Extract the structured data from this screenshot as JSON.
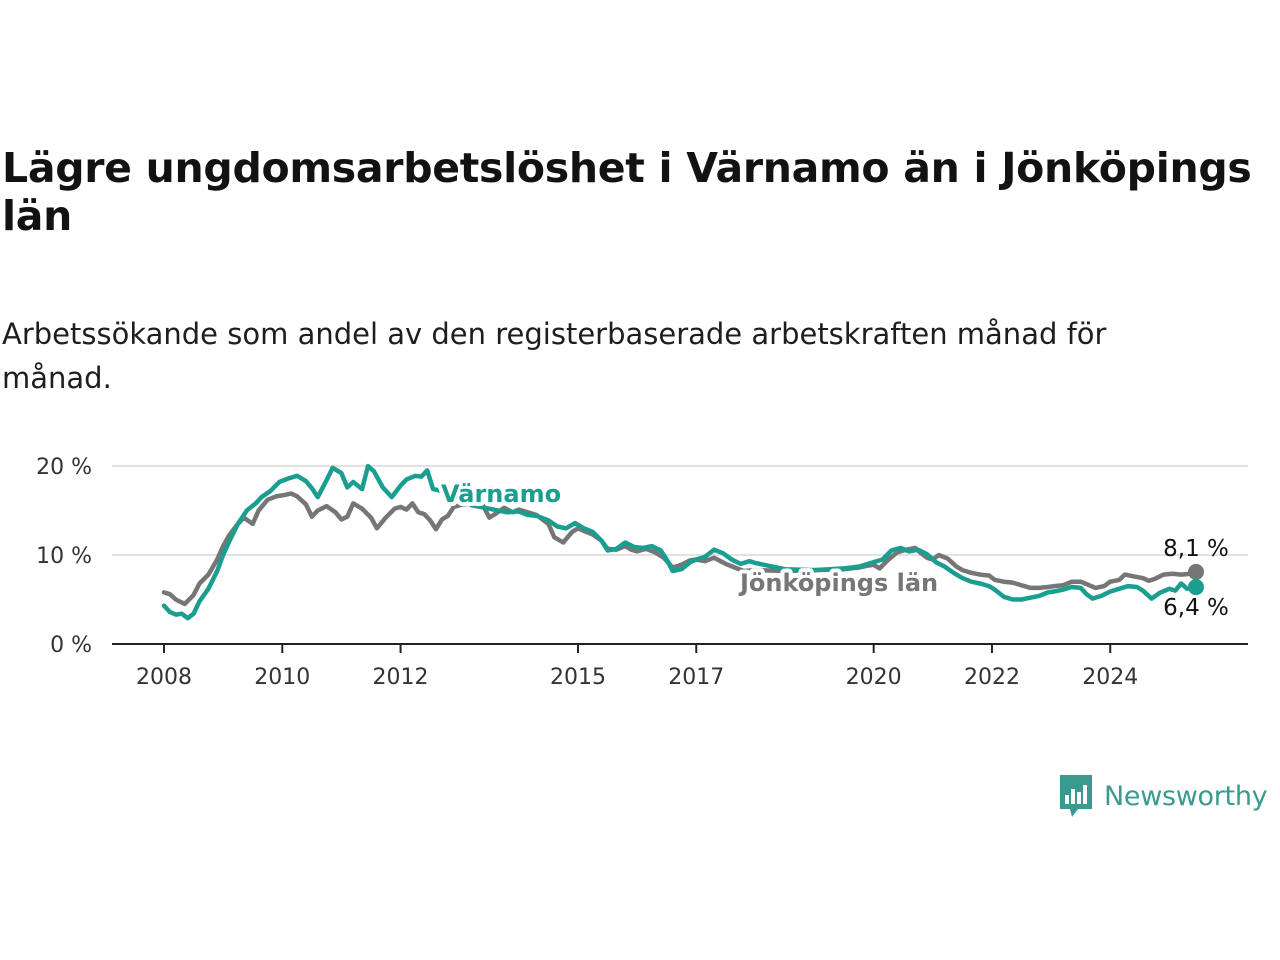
{
  "title": "Lägre ungdomsarbetslöshet i Värnamo än i Jönköpings län",
  "subtitle": "Arbetssökande som andel av den registerbaserade arbetskraften månad för månad.",
  "brand": {
    "name": "Newsworthy",
    "icon": "newsworthy-bar-chart-icon",
    "color": "#3a9a8e"
  },
  "chart_data": {
    "type": "line",
    "x_unit": "year",
    "xlim": [
      2008,
      2025.75
    ],
    "ylim": [
      0,
      20
    ],
    "y_ticks": [
      {
        "value": 0,
        "label": "0 %"
      },
      {
        "value": 10,
        "label": "10 %"
      },
      {
        "value": 20,
        "label": "20 %"
      }
    ],
    "x_ticks": [
      {
        "value": 2008,
        "label": "2008"
      },
      {
        "value": 2010,
        "label": "2010"
      },
      {
        "value": 2012,
        "label": "2012"
      },
      {
        "value": 2015,
        "label": "2015"
      },
      {
        "value": 2017,
        "label": "2017"
      },
      {
        "value": 2020,
        "label": "2020"
      },
      {
        "value": 2022,
        "label": "2022"
      },
      {
        "value": 2024,
        "label": "2024"
      }
    ],
    "grid": true,
    "series": [
      {
        "name": "Jönköpings län",
        "color": "#767676",
        "end_label": "8,1 %",
        "points": [
          [
            2008.0,
            5.8
          ],
          [
            2008.1,
            5.6
          ],
          [
            2008.2,
            5.0
          ],
          [
            2008.35,
            4.5
          ],
          [
            2008.5,
            5.5
          ],
          [
            2008.6,
            6.8
          ],
          [
            2008.75,
            7.8
          ],
          [
            2008.9,
            9.5
          ],
          [
            2009.0,
            11.0
          ],
          [
            2009.1,
            12.2
          ],
          [
            2009.25,
            13.5
          ],
          [
            2009.35,
            14.2
          ],
          [
            2009.5,
            13.5
          ],
          [
            2009.6,
            15.0
          ],
          [
            2009.75,
            16.2
          ],
          [
            2009.9,
            16.6
          ],
          [
            2010.0,
            16.7
          ],
          [
            2010.15,
            16.9
          ],
          [
            2010.25,
            16.6
          ],
          [
            2010.4,
            15.7
          ],
          [
            2010.5,
            14.3
          ],
          [
            2010.6,
            15.0
          ],
          [
            2010.75,
            15.5
          ],
          [
            2010.9,
            14.8
          ],
          [
            2011.0,
            14.0
          ],
          [
            2011.1,
            14.3
          ],
          [
            2011.2,
            15.8
          ],
          [
            2011.35,
            15.2
          ],
          [
            2011.5,
            14.2
          ],
          [
            2011.6,
            13.0
          ],
          [
            2011.75,
            14.2
          ],
          [
            2011.9,
            15.2
          ],
          [
            2012.0,
            15.4
          ],
          [
            2012.1,
            15.1
          ],
          [
            2012.2,
            15.8
          ],
          [
            2012.3,
            14.8
          ],
          [
            2012.4,
            14.6
          ],
          [
            2012.5,
            13.9
          ],
          [
            2012.6,
            12.9
          ],
          [
            2012.7,
            14.0
          ],
          [
            2012.8,
            14.4
          ],
          [
            2012.9,
            15.4
          ],
          [
            2013.0,
            15.6
          ],
          [
            2013.2,
            15.8
          ],
          [
            2013.4,
            15.5
          ],
          [
            2013.5,
            14.2
          ],
          [
            2013.6,
            14.6
          ],
          [
            2013.75,
            15.3
          ],
          [
            2013.9,
            14.8
          ],
          [
            2014.0,
            15.1
          ],
          [
            2014.15,
            14.8
          ],
          [
            2014.3,
            14.5
          ],
          [
            2014.5,
            13.5
          ],
          [
            2014.6,
            12.0
          ],
          [
            2014.75,
            11.4
          ],
          [
            2014.9,
            12.6
          ],
          [
            2015.0,
            13.0
          ],
          [
            2015.1,
            12.7
          ],
          [
            2015.25,
            12.3
          ],
          [
            2015.4,
            11.6
          ],
          [
            2015.5,
            10.7
          ],
          [
            2015.65,
            10.6
          ],
          [
            2015.8,
            11.0
          ],
          [
            2015.9,
            10.6
          ],
          [
            2016.0,
            10.4
          ],
          [
            2016.15,
            10.7
          ],
          [
            2016.3,
            10.3
          ],
          [
            2016.45,
            9.7
          ],
          [
            2016.6,
            8.6
          ],
          [
            2016.75,
            8.9
          ],
          [
            2016.9,
            9.4
          ],
          [
            2017.0,
            9.5
          ],
          [
            2017.15,
            9.3
          ],
          [
            2017.3,
            9.7
          ],
          [
            2017.5,
            9.0
          ],
          [
            2017.65,
            8.6
          ],
          [
            2017.8,
            8.2
          ],
          [
            2018.0,
            8.3
          ],
          [
            2018.5,
            8.2
          ],
          [
            2019.0,
            8.3
          ],
          [
            2019.5,
            8.4
          ],
          [
            2019.75,
            8.6
          ],
          [
            2019.9,
            8.8
          ],
          [
            2020.0,
            8.9
          ],
          [
            2020.1,
            8.5
          ],
          [
            2020.25,
            9.5
          ],
          [
            2020.4,
            10.3
          ],
          [
            2020.55,
            10.6
          ],
          [
            2020.7,
            10.8
          ],
          [
            2020.8,
            10.2
          ],
          [
            2020.9,
            9.7
          ],
          [
            2021.0,
            9.5
          ],
          [
            2021.1,
            10.0
          ],
          [
            2021.25,
            9.6
          ],
          [
            2021.4,
            8.7
          ],
          [
            2021.5,
            8.3
          ],
          [
            2021.65,
            8.0
          ],
          [
            2021.8,
            7.8
          ],
          [
            2021.95,
            7.7
          ],
          [
            2022.05,
            7.2
          ],
          [
            2022.2,
            7.0
          ],
          [
            2022.35,
            6.9
          ],
          [
            2022.5,
            6.6
          ],
          [
            2022.65,
            6.3
          ],
          [
            2022.8,
            6.3
          ],
          [
            2022.95,
            6.4
          ],
          [
            2023.05,
            6.5
          ],
          [
            2023.2,
            6.6
          ],
          [
            2023.35,
            7.0
          ],
          [
            2023.5,
            7.0
          ],
          [
            2023.65,
            6.6
          ],
          [
            2023.75,
            6.3
          ],
          [
            2023.9,
            6.5
          ],
          [
            2024.0,
            7.0
          ],
          [
            2024.15,
            7.2
          ],
          [
            2024.25,
            7.8
          ],
          [
            2024.4,
            7.6
          ],
          [
            2024.55,
            7.4
          ],
          [
            2024.65,
            7.1
          ],
          [
            2024.75,
            7.3
          ],
          [
            2024.9,
            7.8
          ],
          [
            2025.05,
            7.9
          ],
          [
            2025.2,
            7.8
          ],
          [
            2025.35,
            7.9
          ],
          [
            2025.45,
            8.1
          ]
        ]
      },
      {
        "name": "Värnamo",
        "color": "#1a9e90",
        "end_label": "6,4 %",
        "points": [
          [
            2008.0,
            4.3
          ],
          [
            2008.1,
            3.6
          ],
          [
            2008.2,
            3.3
          ],
          [
            2008.3,
            3.4
          ],
          [
            2008.4,
            2.9
          ],
          [
            2008.5,
            3.4
          ],
          [
            2008.6,
            4.8
          ],
          [
            2008.75,
            6.2
          ],
          [
            2008.9,
            8.2
          ],
          [
            2009.0,
            10.0
          ],
          [
            2009.1,
            11.5
          ],
          [
            2009.25,
            13.5
          ],
          [
            2009.4,
            15.0
          ],
          [
            2009.55,
            15.8
          ],
          [
            2009.65,
            16.5
          ],
          [
            2009.8,
            17.2
          ],
          [
            2009.95,
            18.2
          ],
          [
            2010.1,
            18.6
          ],
          [
            2010.25,
            18.9
          ],
          [
            2010.4,
            18.3
          ],
          [
            2010.5,
            17.5
          ],
          [
            2010.6,
            16.5
          ],
          [
            2010.75,
            18.4
          ],
          [
            2010.85,
            19.8
          ],
          [
            2011.0,
            19.2
          ],
          [
            2011.1,
            17.6
          ],
          [
            2011.2,
            18.2
          ],
          [
            2011.35,
            17.4
          ],
          [
            2011.45,
            20.0
          ],
          [
            2011.55,
            19.4
          ],
          [
            2011.7,
            17.6
          ],
          [
            2011.85,
            16.5
          ],
          [
            2012.0,
            17.8
          ],
          [
            2012.1,
            18.5
          ],
          [
            2012.25,
            18.9
          ],
          [
            2012.35,
            18.8
          ],
          [
            2012.45,
            19.5
          ],
          [
            2012.55,
            17.4
          ],
          [
            2012.7,
            17.2
          ],
          [
            2012.85,
            17.3
          ],
          [
            2012.95,
            16.4
          ],
          [
            2013.1,
            16.1
          ],
          [
            2013.2,
            15.6
          ],
          [
            2013.5,
            15.2
          ],
          [
            2013.8,
            14.8
          ],
          [
            2014.0,
            14.9
          ],
          [
            2014.15,
            14.5
          ],
          [
            2014.3,
            14.4
          ],
          [
            2014.5,
            13.9
          ],
          [
            2014.65,
            13.2
          ],
          [
            2014.8,
            13.0
          ],
          [
            2014.95,
            13.6
          ],
          [
            2015.1,
            13.0
          ],
          [
            2015.25,
            12.6
          ],
          [
            2015.4,
            11.6
          ],
          [
            2015.5,
            10.5
          ],
          [
            2015.65,
            10.7
          ],
          [
            2015.8,
            11.4
          ],
          [
            2015.95,
            10.9
          ],
          [
            2016.1,
            10.8
          ],
          [
            2016.25,
            11.0
          ],
          [
            2016.4,
            10.5
          ],
          [
            2016.5,
            9.5
          ],
          [
            2016.6,
            8.2
          ],
          [
            2016.75,
            8.4
          ],
          [
            2016.9,
            9.2
          ],
          [
            2017.0,
            9.5
          ],
          [
            2017.15,
            9.8
          ],
          [
            2017.3,
            10.6
          ],
          [
            2017.45,
            10.2
          ],
          [
            2017.6,
            9.5
          ],
          [
            2017.75,
            9.0
          ],
          [
            2017.9,
            9.3
          ],
          [
            2018.0,
            9.1
          ],
          [
            2018.5,
            8.4
          ],
          [
            2019.0,
            8.3
          ],
          [
            2019.5,
            8.5
          ],
          [
            2019.75,
            8.7
          ],
          [
            2020.0,
            9.2
          ],
          [
            2020.15,
            9.5
          ],
          [
            2020.3,
            10.5
          ],
          [
            2020.45,
            10.8
          ],
          [
            2020.6,
            10.4
          ],
          [
            2020.75,
            10.6
          ],
          [
            2020.9,
            10.1
          ],
          [
            2021.05,
            9.2
          ],
          [
            2021.2,
            8.7
          ],
          [
            2021.35,
            8.0
          ],
          [
            2021.5,
            7.4
          ],
          [
            2021.65,
            7.0
          ],
          [
            2021.8,
            6.8
          ],
          [
            2021.95,
            6.5
          ],
          [
            2022.05,
            6.1
          ],
          [
            2022.2,
            5.3
          ],
          [
            2022.35,
            5.0
          ],
          [
            2022.5,
            5.0
          ],
          [
            2022.65,
            5.2
          ],
          [
            2022.8,
            5.4
          ],
          [
            2022.95,
            5.8
          ],
          [
            2023.05,
            5.9
          ],
          [
            2023.2,
            6.1
          ],
          [
            2023.35,
            6.4
          ],
          [
            2023.5,
            6.3
          ],
          [
            2023.6,
            5.6
          ],
          [
            2023.7,
            5.1
          ],
          [
            2023.85,
            5.4
          ],
          [
            2024.0,
            5.9
          ],
          [
            2024.15,
            6.2
          ],
          [
            2024.3,
            6.5
          ],
          [
            2024.45,
            6.4
          ],
          [
            2024.55,
            6.0
          ],
          [
            2024.7,
            5.1
          ],
          [
            2024.85,
            5.8
          ],
          [
            2025.0,
            6.2
          ],
          [
            2025.1,
            6.0
          ],
          [
            2025.2,
            6.8
          ],
          [
            2025.3,
            6.2
          ],
          [
            2025.45,
            6.4
          ]
        ]
      }
    ]
  }
}
